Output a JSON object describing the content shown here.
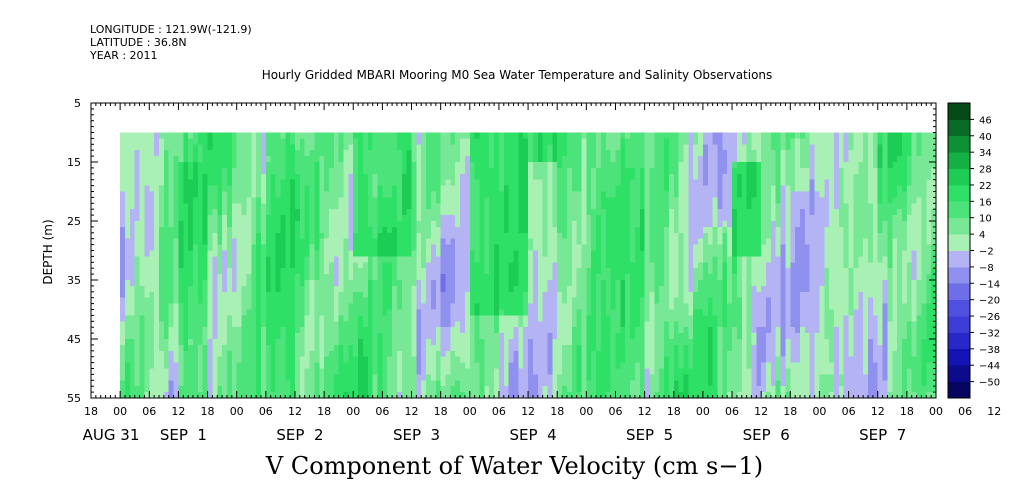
{
  "meta": {
    "longitude": "LONGITUDE : 121.9W(-121.9)",
    "latitude": "LATITUDE : 36.8N",
    "year": "YEAR : 2011"
  },
  "chart_data": {
    "type": "heatmap",
    "title": "Hourly Gridded MBARI Mooring M0 Sea Water Temperature and Salinity Observations",
    "xlabel": "",
    "ylabel": "DEPTH (m)",
    "variable_label": "V Component of Water Velocity (cm s−1)",
    "ylim": [
      5,
      55
    ],
    "y_ticks": [
      5,
      15,
      25,
      35,
      45,
      55
    ],
    "y_data_range": [
      10,
      55
    ],
    "x_start_hour": "2011-08-31 18:00",
    "x_data_start_hour": "2011-09-01 00:00",
    "x_end_hour": "2011-09-08 00:00",
    "x_hour_ticks": [
      "18",
      "00",
      "06",
      "12",
      "18",
      "00",
      "06",
      "12",
      "18",
      "00",
      "06",
      "12",
      "18",
      "00",
      "06",
      "12",
      "18",
      "00",
      "06",
      "12",
      "18",
      "00",
      "06",
      "12",
      "18",
      "00",
      "06",
      "12",
      "18",
      "00",
      "06",
      "12"
    ],
    "x_date_labels": [
      "AUG 31",
      "SEP  1",
      "SEP  2",
      "SEP  3",
      "SEP  4",
      "SEP  5",
      "SEP  6",
      "SEP  7"
    ],
    "colorbar": {
      "levels": [
        -50,
        -44,
        -38,
        -32,
        -26,
        -20,
        -14,
        -8,
        -2,
        4,
        10,
        16,
        22,
        28,
        34,
        40,
        46
      ],
      "tick_labels": [
        "46",
        "40",
        "34",
        "28",
        "22",
        "16",
        "10",
        "4",
        "−2",
        "−8",
        "−14",
        "−20",
        "−26",
        "−32",
        "−38",
        "−44",
        "−50"
      ],
      "colors_low_to_high": [
        "#060660",
        "#0b0b8c",
        "#1414b4",
        "#2828c8",
        "#3c3cd6",
        "#5050e0",
        "#6e6ee8",
        "#9090ee",
        "#b4b4f4",
        "#a8f0b4",
        "#78e896",
        "#4ce47a",
        "#2ee066",
        "#1ccc54",
        "#14b044",
        "#0e9034",
        "#086a24",
        "#064a18"
      ]
    },
    "dominant_bands": [
      {
        "day": "SEP 1",
        "start_hour": 0,
        "end_hour": 6,
        "depth": [
          10,
          20
        ],
        "value": -4
      },
      {
        "day": "SEP 1",
        "start_hour": 12,
        "end_hour": 18,
        "depth": [
          15,
          55
        ],
        "value": 20
      },
      {
        "day": "SEP 2",
        "start_hour": 6,
        "end_hour": 12,
        "depth": [
          10,
          55
        ],
        "value": 18
      },
      {
        "day": "SEP 3",
        "start_hour": 0,
        "end_hour": 12,
        "depth": [
          10,
          30
        ],
        "value": 22
      },
      {
        "day": "SEP 4",
        "start_hour": 0,
        "end_hour": 12,
        "depth": [
          10,
          40
        ],
        "value": 22
      },
      {
        "day": "SEP 4",
        "start_hour": 12,
        "end_hour": 18,
        "depth": [
          15,
          55
        ],
        "value": -5
      },
      {
        "day": "SEP 5",
        "start_hour": 0,
        "end_hour": 12,
        "depth": [
          10,
          55
        ],
        "value": 14
      },
      {
        "day": "SEP 6",
        "start_hour": 0,
        "end_hour": 6,
        "depth": [
          10,
          25
        ],
        "value": -6
      },
      {
        "day": "SEP 6",
        "start_hour": 6,
        "end_hour": 12,
        "depth": [
          15,
          30
        ],
        "value": 24
      },
      {
        "day": "SEP 6",
        "start_hour": 18,
        "end_hour": 24,
        "depth": [
          20,
          55
        ],
        "value": -7
      },
      {
        "day": "SEP 7",
        "start_hour": 0,
        "end_hour": 12,
        "depth": [
          10,
          50
        ],
        "value": -3
      }
    ]
  }
}
